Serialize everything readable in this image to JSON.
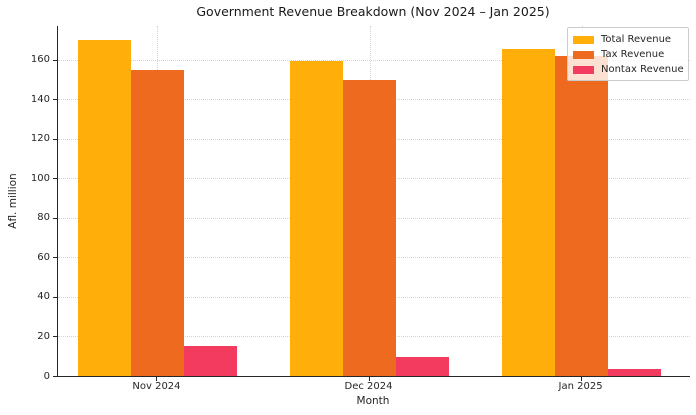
{
  "chart_data": {
    "type": "bar",
    "title": "Government Revenue Breakdown (Nov 2024 – Jan 2025)",
    "xlabel": "Month",
    "ylabel": "Afl. million",
    "categories": [
      "Nov 2024",
      "Dec 2024",
      "Jan 2025"
    ],
    "series": [
      {
        "name": "Total Revenue",
        "color": "#FFAE0A",
        "values": [
          169.9,
          159.4,
          165.2
        ]
      },
      {
        "name": "Tax Revenue",
        "color": "#ED6A1E",
        "values": [
          154.6,
          149.9,
          161.8
        ]
      },
      {
        "name": "Nontax Revenue",
        "color": "#F23B5F",
        "values": [
          15.3,
          9.5,
          3.4
        ]
      }
    ],
    "yticks": [
      0,
      20,
      40,
      60,
      80,
      100,
      120,
      140,
      160
    ],
    "ylim": [
      0,
      177
    ],
    "grid": true,
    "grid_style": "dotted",
    "legend_position": "upper right",
    "background_color": "#ffffff",
    "axis_color": "#262626",
    "grid_color": "#d4d4d4"
  }
}
